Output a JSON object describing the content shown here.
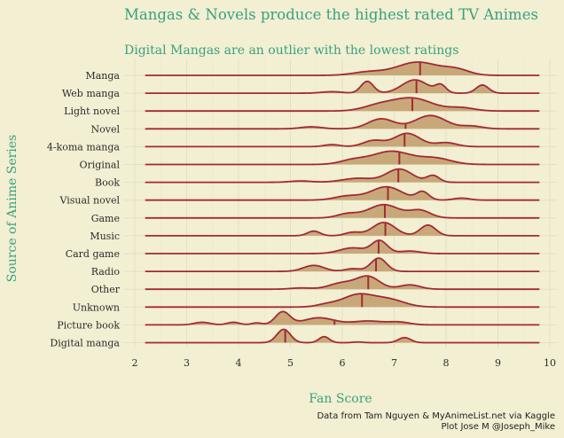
{
  "chart_data": {
    "type": "ridgeline",
    "title": "Mangas & Novels produce the highest rated TV Animes",
    "subtitle": "Digital Mangas are an outlier with the lowest ratings",
    "xlabel": "Fan Score",
    "ylabel": "Source of Anime Series",
    "xlim": [
      2,
      10
    ],
    "xticks": [
      2,
      3,
      4,
      5,
      6,
      7,
      8,
      9,
      10
    ],
    "grid": true,
    "caption_line1": "Data from Tam Nguyen & MyAnimeList.net via Kaggle",
    "caption_line2": "Plot Jose M @Joseph_Mike",
    "colors": {
      "fill": "#c8a878",
      "line": "#a32a35",
      "title": "#3aa17e",
      "background": "#f2efd3"
    },
    "series": [
      {
        "label": "Manga",
        "median": 7.5,
        "peaks": [
          [
            7.45,
            0.4,
            1.0
          ],
          [
            8.2,
            0.25,
            0.4
          ],
          [
            6.5,
            0.3,
            0.25
          ]
        ]
      },
      {
        "label": "Web manga",
        "median": 7.43,
        "peaks": [
          [
            6.48,
            0.12,
            0.8
          ],
          [
            7.4,
            0.25,
            0.9
          ],
          [
            7.9,
            0.1,
            0.5
          ],
          [
            8.7,
            0.12,
            0.55
          ],
          [
            5.8,
            0.2,
            0.1
          ]
        ]
      },
      {
        "label": "Light novel",
        "median": 7.35,
        "peaks": [
          [
            7.35,
            0.38,
            1.0
          ],
          [
            6.7,
            0.3,
            0.4
          ],
          [
            8.3,
            0.25,
            0.25
          ]
        ]
      },
      {
        "label": "Novel",
        "median": 7.22,
        "peaks": [
          [
            7.7,
            0.3,
            1.0
          ],
          [
            6.75,
            0.25,
            0.75
          ],
          [
            5.4,
            0.2,
            0.15
          ],
          [
            8.5,
            0.2,
            0.2
          ]
        ]
      },
      {
        "label": "4-koma manga",
        "median": 7.2,
        "peaks": [
          [
            7.25,
            0.25,
            1.0
          ],
          [
            6.6,
            0.2,
            0.45
          ],
          [
            8.0,
            0.2,
            0.3
          ],
          [
            5.8,
            0.15,
            0.15
          ]
        ]
      },
      {
        "label": "Original",
        "median": 7.1,
        "peaks": [
          [
            6.95,
            0.38,
            1.0
          ],
          [
            7.8,
            0.3,
            0.45
          ],
          [
            6.2,
            0.25,
            0.3
          ]
        ]
      },
      {
        "label": "Book",
        "median": 7.08,
        "peaks": [
          [
            7.1,
            0.25,
            1.0
          ],
          [
            7.75,
            0.12,
            0.5
          ],
          [
            6.3,
            0.3,
            0.3
          ],
          [
            5.2,
            0.2,
            0.1
          ]
        ]
      },
      {
        "label": "Visual novel",
        "median": 6.88,
        "peaks": [
          [
            6.85,
            0.3,
            1.0
          ],
          [
            7.55,
            0.12,
            0.6
          ],
          [
            6.1,
            0.25,
            0.3
          ],
          [
            8.3,
            0.15,
            0.15
          ]
        ]
      },
      {
        "label": "Game",
        "median": 6.82,
        "peaks": [
          [
            6.8,
            0.3,
            1.0
          ],
          [
            7.5,
            0.2,
            0.55
          ],
          [
            6.1,
            0.2,
            0.3
          ]
        ]
      },
      {
        "label": "Music",
        "median": 6.83,
        "peaks": [
          [
            6.8,
            0.22,
            1.0
          ],
          [
            7.65,
            0.15,
            0.8
          ],
          [
            5.45,
            0.12,
            0.35
          ],
          [
            6.2,
            0.15,
            0.25
          ]
        ]
      },
      {
        "label": "Card game",
        "median": 6.7,
        "peaks": [
          [
            6.72,
            0.15,
            1.0
          ],
          [
            6.2,
            0.25,
            0.45
          ],
          [
            7.3,
            0.2,
            0.2
          ]
        ]
      },
      {
        "label": "Radio",
        "median": 6.65,
        "peaks": [
          [
            6.7,
            0.15,
            1.0
          ],
          [
            5.45,
            0.2,
            0.45
          ],
          [
            6.2,
            0.15,
            0.2
          ]
        ]
      },
      {
        "label": "Other",
        "median": 6.5,
        "peaks": [
          [
            6.5,
            0.22,
            1.0
          ],
          [
            6.0,
            0.25,
            0.5
          ],
          [
            7.3,
            0.2,
            0.35
          ],
          [
            5.2,
            0.2,
            0.1
          ]
        ]
      },
      {
        "label": "Unknown",
        "median": 6.38,
        "peaks": [
          [
            6.3,
            0.3,
            1.0
          ],
          [
            6.9,
            0.3,
            0.6
          ],
          [
            5.7,
            0.2,
            0.2
          ]
        ]
      },
      {
        "label": "Picture book",
        "median": 5.85,
        "peaks": [
          [
            4.85,
            0.14,
            1.0
          ],
          [
            5.55,
            0.3,
            0.55
          ],
          [
            3.3,
            0.15,
            0.2
          ],
          [
            3.9,
            0.12,
            0.2
          ],
          [
            4.35,
            0.1,
            0.15
          ],
          [
            6.5,
            0.3,
            0.3
          ],
          [
            7.1,
            0.2,
            0.2
          ]
        ]
      },
      {
        "label": "Digital manga",
        "median": 4.9,
        "peaks": [
          [
            4.87,
            0.13,
            1.0
          ],
          [
            5.65,
            0.1,
            0.45
          ],
          [
            7.2,
            0.12,
            0.38
          ],
          [
            6.3,
            0.1,
            0.05
          ]
        ]
      }
    ]
  }
}
